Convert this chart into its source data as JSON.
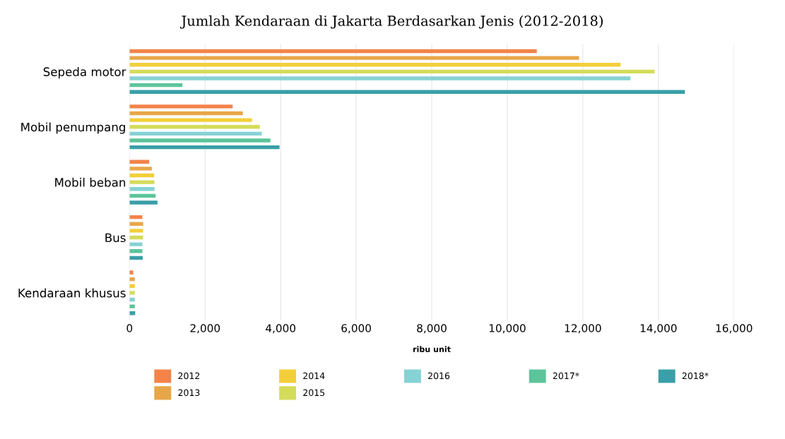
{
  "chart_data": {
    "type": "bar",
    "orientation": "horizontal",
    "title": "Jumlah Kendaraan di Jakarta Berdasarkan Jenis (2012-2018)",
    "xlabel": "ribu unit",
    "categories": [
      "Sepeda motor",
      "Mobil penumpang",
      "Mobil beban",
      "Bus",
      "Kendaraan khusus"
    ],
    "series": [
      {
        "name": "2012",
        "color": "#f4834a",
        "values": [
          10780,
          2730,
          520,
          340,
          100
        ]
      },
      {
        "name": "2013",
        "color": "#e8a64a",
        "values": [
          11900,
          3000,
          590,
          360,
          140
        ]
      },
      {
        "name": "2014",
        "color": "#f2cf3a",
        "values": [
          13000,
          3240,
          650,
          360,
          140
        ]
      },
      {
        "name": "2015",
        "color": "#d4dc5a",
        "values": [
          13900,
          3450,
          660,
          360,
          140
        ]
      },
      {
        "name": "2016",
        "color": "#86d2d4",
        "values": [
          13260,
          3500,
          660,
          340,
          140
        ]
      },
      {
        "name": "2017*",
        "color": "#5cc49a",
        "values": [
          1400,
          3730,
          690,
          340,
          140
        ]
      },
      {
        "name": "2018*",
        "color": "#3a9fa8",
        "values": [
          14700,
          3970,
          740,
          350,
          150
        ]
      }
    ],
    "xlim": [
      0,
      16000
    ],
    "xticks": [
      0,
      {
        "value": 2000,
        "label": "2,000"
      },
      {
        "value": 4000,
        "label": "4,000"
      },
      {
        "value": 6000,
        "label": "6,000"
      },
      {
        "value": 8000,
        "label": "8,000"
      },
      {
        "value": 10000,
        "label": "10,000"
      },
      {
        "value": 12000,
        "label": "12,000"
      },
      {
        "value": 14000,
        "label": "14,000"
      },
      {
        "value": 16000,
        "label": "16,000"
      }
    ],
    "grid": "x",
    "legend": "bottom"
  }
}
